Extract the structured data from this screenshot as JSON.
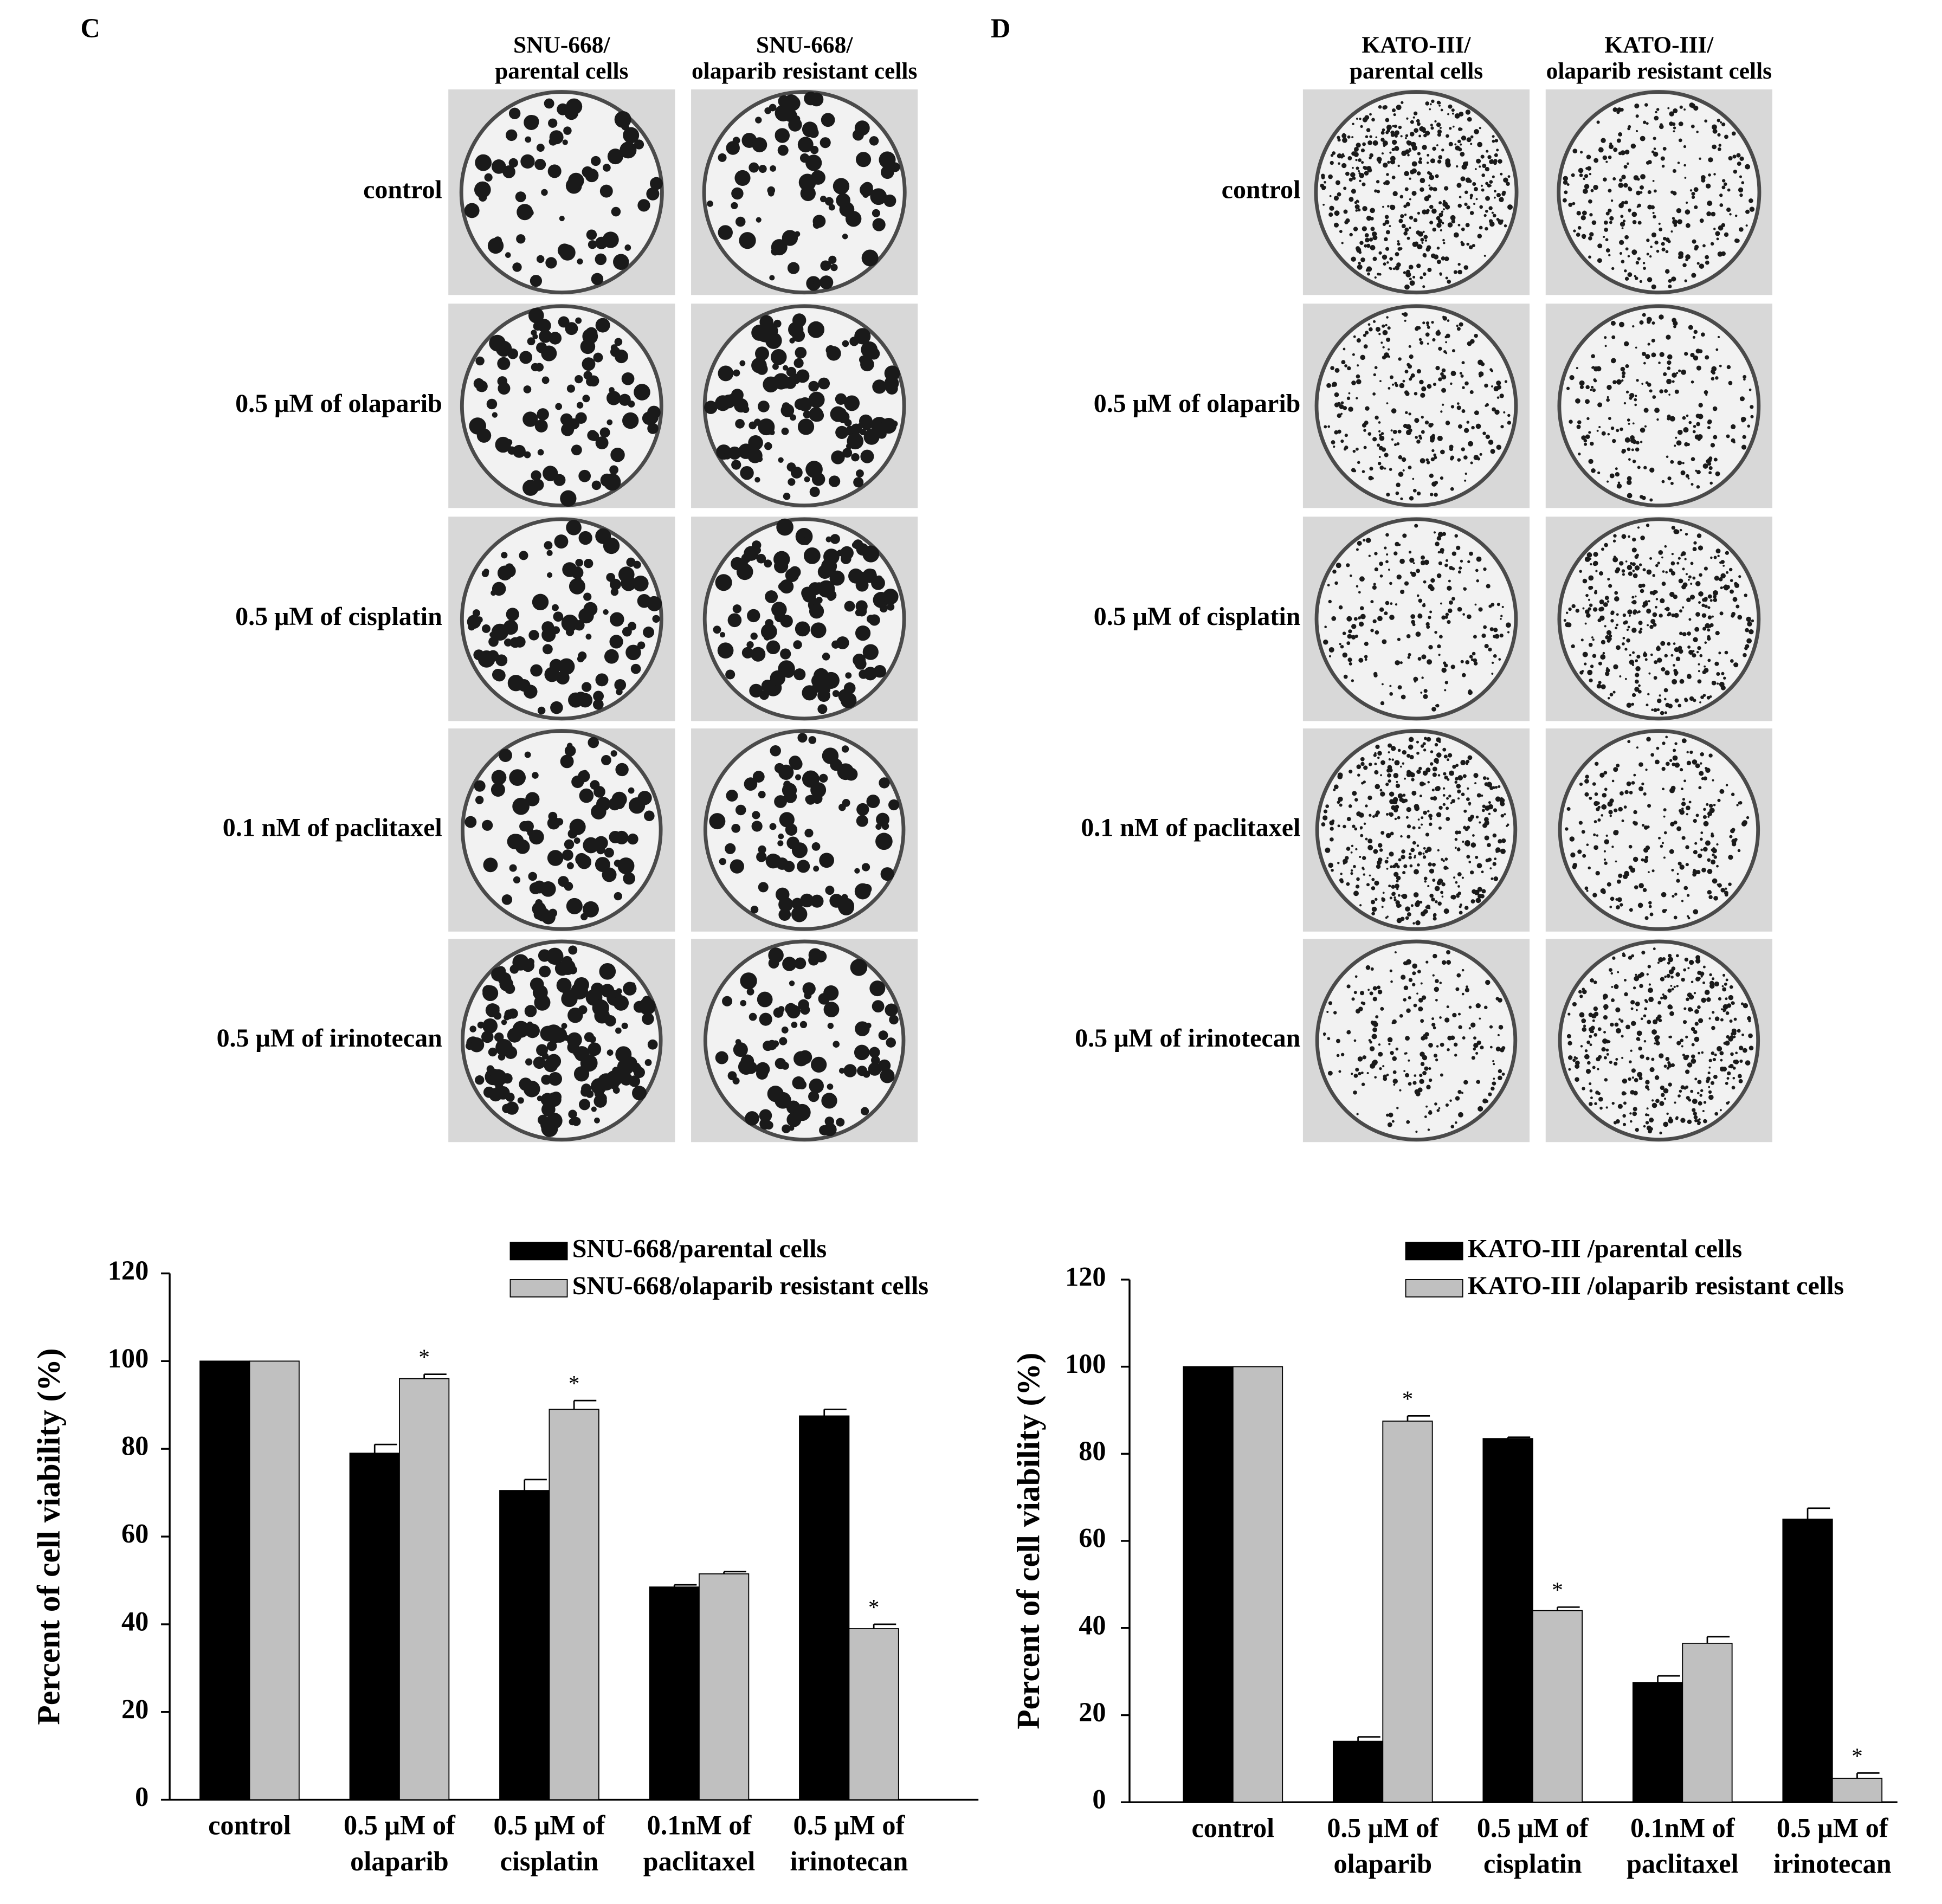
{
  "panels": [
    {
      "letter": "C",
      "columns": [
        [
          "SNU-668/",
          "parental cells"
        ],
        [
          "SNU-668/",
          "olaparib resistant cells"
        ]
      ],
      "rows": [
        "control",
        "0.5 μM of olaparib",
        "0.5 μM of cisplatin",
        "0.1 nM of paclitaxel",
        "0.5 μM of irinotecan"
      ]
    },
    {
      "letter": "D",
      "columns": [
        [
          "KATO-III/",
          "parental cells"
        ],
        [
          "KATO-III/",
          "olaparib resistant cells"
        ]
      ],
      "rows": [
        "control",
        "0.5 μM of olaparib",
        "0.5 μM of cisplatin",
        "0.1 nM of paclitaxel",
        "0.5 μM of irinotecan"
      ]
    }
  ],
  "chart_data": [
    {
      "type": "bar",
      "y_label": "Percent of cell viability (%)",
      "categories": [
        [
          "control"
        ],
        [
          "0.5 μM of",
          "olaparib"
        ],
        [
          "0.5 μM of",
          "cisplatin"
        ],
        [
          "0.1nM of",
          "paclitaxel"
        ],
        [
          "0.5 μM of",
          "irinotecan"
        ]
      ],
      "series": [
        {
          "name": "SNU-668/parental cells",
          "color": "#000000",
          "values": [
            100,
            79,
            70.5,
            48.5,
            87.5
          ],
          "errors": [
            null,
            2,
            2.5,
            0.5,
            1.5
          ],
          "significance": [
            null,
            null,
            null,
            null,
            null
          ]
        },
        {
          "name": "SNU-668/olaparib resistant cells",
          "color": "#c0c0c0",
          "values": [
            100,
            96,
            89,
            51.5,
            39
          ],
          "errors": [
            null,
            1,
            2,
            0.5,
            1
          ],
          "significance": [
            null,
            "*",
            "*",
            null,
            "*"
          ]
        }
      ],
      "ylim": [
        0,
        120
      ],
      "yticks": [
        0,
        20,
        40,
        60,
        80,
        100,
        120
      ],
      "grid": false,
      "legend": "top-right"
    },
    {
      "type": "bar",
      "y_label": "Percent of cell viability (%)",
      "categories": [
        [
          "control"
        ],
        [
          "0.5 μM of",
          "olaparib"
        ],
        [
          "0.5 μM of",
          "cisplatin"
        ],
        [
          "0.1nM of",
          "paclitaxel"
        ],
        [
          "0.5 μM of",
          "irinotecan"
        ]
      ],
      "series": [
        {
          "name": "KATO-III /parental cells",
          "color": "#000000",
          "values": [
            100,
            14,
            83.5,
            27.5,
            65
          ],
          "errors": [
            null,
            1,
            0.3,
            1.5,
            2.5
          ],
          "significance": [
            null,
            null,
            null,
            null,
            null
          ]
        },
        {
          "name": "KATO-III /olaparib resistant cells",
          "color": "#c0c0c0",
          "values": [
            100,
            87.5,
            44,
            36.5,
            5.5
          ],
          "errors": [
            null,
            1.2,
            0.8,
            1.5,
            1.2
          ],
          "significance": [
            null,
            "*",
            "*",
            null,
            "*"
          ]
        }
      ],
      "ylim": [
        0,
        120
      ],
      "yticks": [
        0,
        20,
        40,
        60,
        80,
        100,
        120
      ],
      "grid": false,
      "legend": "top-right"
    }
  ]
}
